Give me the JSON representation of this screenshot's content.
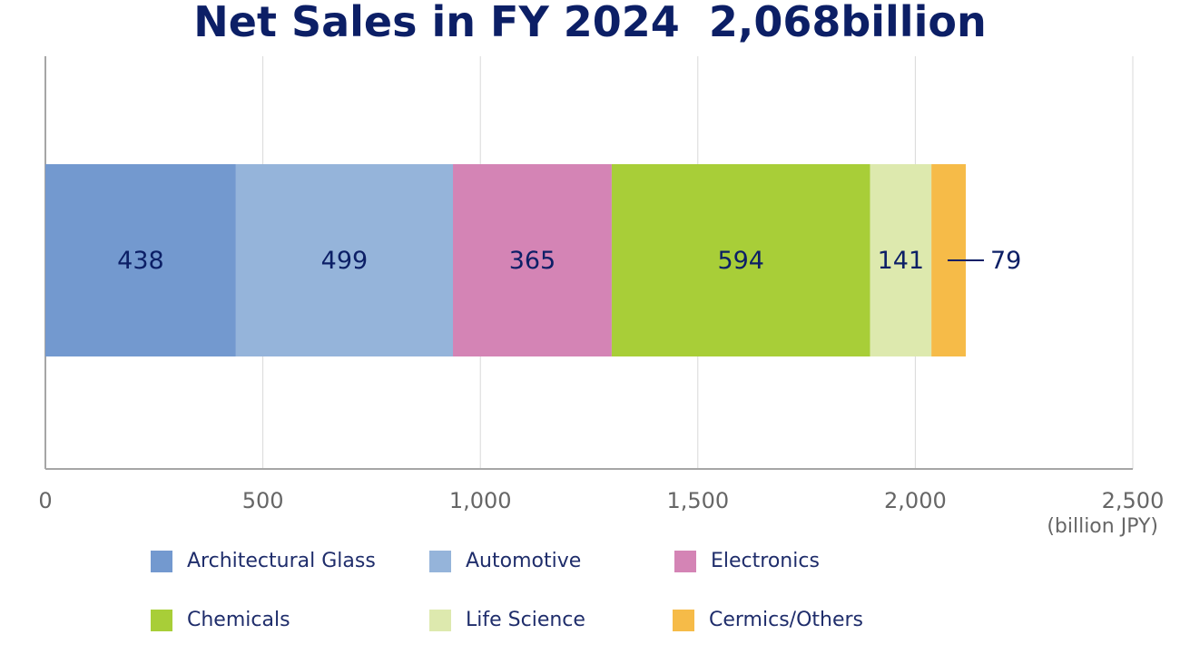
{
  "title": "Net Sales in FY 2024  2,068billion",
  "unit_label": "(billion JPY)",
  "colors": {
    "Architectural Glass": "#7399cf",
    "Automotive": "#95b4da",
    "Electronics": "#d484b5",
    "Chemicals": "#a8ce38",
    "Life Science": "#dde9ae",
    "Cermics/Others": "#f6bb48",
    "label_text": "#0c1f66",
    "axis_text": "#666666",
    "grid": "#d9d9d9"
  },
  "chart_data": {
    "type": "bar",
    "orientation": "horizontal",
    "stacked": true,
    "title": "Net Sales in FY 2024  2,068billion",
    "xlim": [
      0,
      2500
    ],
    "xticks": [
      0,
      500,
      1000,
      1500,
      2000,
      2500
    ],
    "xtick_labels": [
      "0",
      "500",
      "1,000",
      "1,500",
      "2,000",
      "2,500"
    ],
    "xlabel": "(billion JPY)",
    "grid": true,
    "legend_position": "bottom",
    "series": [
      {
        "name": "Architectural Glass",
        "value": 438,
        "label": "438"
      },
      {
        "name": "Automotive",
        "value": 499,
        "label": "499"
      },
      {
        "name": "Electronics",
        "value": 365,
        "label": "365"
      },
      {
        "name": "Chemicals",
        "value": 594,
        "label": "594"
      },
      {
        "name": "Life Science",
        "value": 141,
        "label": "141"
      },
      {
        "name": "Cermics/Others",
        "value": 79,
        "label": "79"
      }
    ]
  }
}
